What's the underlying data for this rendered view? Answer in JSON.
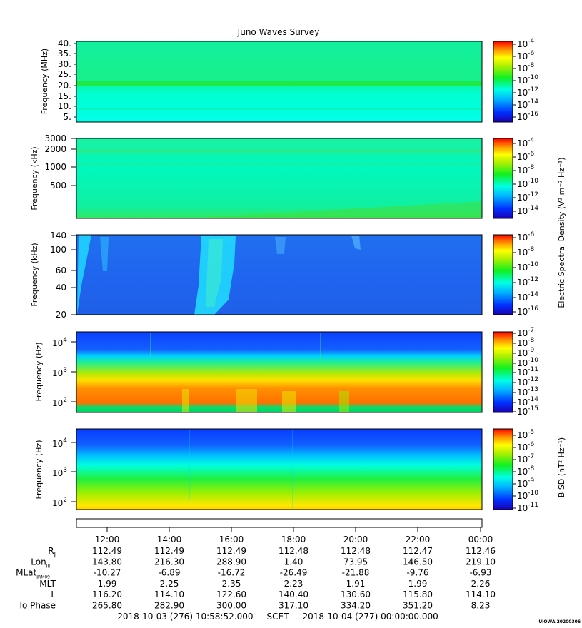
{
  "title": "Juno Waves Survey",
  "shared_ylabel": "Electric Spectral Density (V² m⁻² Hz⁻¹)",
  "credit": "UIOWA 20200306",
  "colors": {
    "bg": "#ffffff",
    "axis": "#000000"
  },
  "chart_data": [
    {
      "type": "heatmap",
      "name": "panel-1",
      "ylabel": "Frequency (MHz)",
      "y_ticks": [
        "40.",
        "35.",
        "30.",
        "25.",
        "20.",
        "15.",
        "10.",
        "5."
      ],
      "colorbar_ticks": [
        {
          "base": "10",
          "exp": "-4"
        },
        {
          "base": "10",
          "exp": "-6"
        },
        {
          "base": "10",
          "exp": "-8"
        },
        {
          "base": "10",
          "exp": "-10"
        },
        {
          "base": "10",
          "exp": "-12"
        },
        {
          "base": "10",
          "exp": "-14"
        },
        {
          "base": "10",
          "exp": "-16"
        }
      ],
      "description": "Uniform cyan-green background, green band near 21 MHz"
    },
    {
      "type": "heatmap",
      "name": "panel-2",
      "ylabel": "Frequency (kHz)",
      "y_ticks": [
        "3000",
        "2000",
        "1000",
        "500"
      ],
      "colorbar_ticks": [
        {
          "base": "10",
          "exp": "-4"
        },
        {
          "base": "10",
          "exp": "-6"
        },
        {
          "base": "10",
          "exp": "-8"
        },
        {
          "base": "10",
          "exp": "-10"
        },
        {
          "base": "10",
          "exp": "-12"
        },
        {
          "base": "10",
          "exp": "-14"
        }
      ]
    },
    {
      "type": "heatmap",
      "name": "panel-3",
      "ylabel": "Frequency (kHz)",
      "y_ticks": [
        "140",
        "100",
        "60",
        "40",
        "20"
      ],
      "colorbar_ticks": [
        {
          "base": "10",
          "exp": "-6"
        },
        {
          "base": "10",
          "exp": "-8"
        },
        {
          "base": "10",
          "exp": "-10"
        },
        {
          "base": "10",
          "exp": "-12"
        },
        {
          "base": "10",
          "exp": "-14"
        },
        {
          "base": "10",
          "exp": "-16"
        }
      ]
    },
    {
      "type": "heatmap",
      "name": "panel-4",
      "ylabel": "Frequency (Hz)",
      "y_ticks": [
        {
          "base": "10",
          "exp": "4"
        },
        {
          "base": "10",
          "exp": "3"
        },
        {
          "base": "10",
          "exp": "2"
        }
      ],
      "colorbar_ticks": [
        {
          "base": "10",
          "exp": "-7"
        },
        {
          "base": "10",
          "exp": "-8"
        },
        {
          "base": "10",
          "exp": "-9"
        },
        {
          "base": "10",
          "exp": "-10"
        },
        {
          "base": "10",
          "exp": "-11"
        },
        {
          "base": "10",
          "exp": "-12"
        },
        {
          "base": "10",
          "exp": "-13"
        },
        {
          "base": "10",
          "exp": "-14"
        },
        {
          "base": "10",
          "exp": "-15"
        }
      ]
    },
    {
      "type": "heatmap",
      "name": "panel-5",
      "ylabel": "Frequency (Hz)",
      "y_ticks": [
        {
          "base": "10",
          "exp": "4"
        },
        {
          "base": "10",
          "exp": "3"
        },
        {
          "base": "10",
          "exp": "2"
        }
      ],
      "colorbar_ticks": [
        {
          "base": "10",
          "exp": "-5"
        },
        {
          "base": "10",
          "exp": "-6"
        },
        {
          "base": "10",
          "exp": "-7"
        },
        {
          "base": "10",
          "exp": "-8"
        },
        {
          "base": "10",
          "exp": "-9"
        },
        {
          "base": "10",
          "exp": "-10"
        },
        {
          "base": "10",
          "exp": "-11"
        }
      ],
      "colorbar_label": "B SD (nT² Hz⁻¹)"
    }
  ],
  "time_axis": {
    "ticks": [
      "12:00",
      "14:00",
      "16:00",
      "18:00",
      "20:00",
      "22:00",
      "00:00"
    ],
    "rows": [
      {
        "label": "R",
        "sub": "J",
        "values": [
          "112.49",
          "112.49",
          "112.49",
          "112.48",
          "112.48",
          "112.47",
          "112.46"
        ]
      },
      {
        "label": "Lon",
        "sub": "III",
        "values": [
          "143.80",
          "216.30",
          "288.90",
          "1.40",
          "73.95",
          "146.50",
          "219.10"
        ]
      },
      {
        "label": "MLat",
        "sub": "JRM09",
        "values": [
          "-10.27",
          "-6.89",
          "-16.72",
          "-26.49",
          "-21.88",
          "-9.76",
          "-6.93"
        ]
      },
      {
        "label": "MLT",
        "sub": "",
        "values": [
          "1.99",
          "2.25",
          "2.35",
          "2.23",
          "1.91",
          "1.99",
          "2.26"
        ]
      },
      {
        "label": "L",
        "sub": "",
        "values": [
          "116.20",
          "114.10",
          "122.60",
          "140.40",
          "130.60",
          "115.80",
          "114.10"
        ]
      },
      {
        "label": "Io Phase",
        "sub": "",
        "values": [
          "265.80",
          "282.90",
          "300.00",
          "317.10",
          "334.20",
          "351.20",
          "8.23"
        ]
      }
    ],
    "footer": "2018-10-03 (276) 10:58:52.000     SCET     2018-10-04 (277) 00:00:00.000"
  }
}
